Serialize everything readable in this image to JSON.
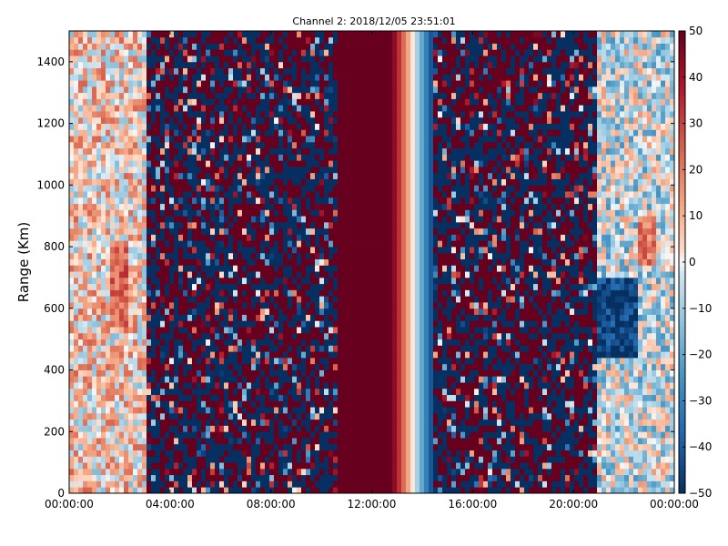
{
  "chart_data": {
    "type": "heatmap",
    "title": "Channel 2: 2018/12/05 23:51:01",
    "xlabel": "",
    "ylabel": "Range (Km)",
    "x_ticks": [
      "00:00:00",
      "04:00:00",
      "08:00:00",
      "12:00:00",
      "16:00:00",
      "20:00:00",
      "00:00:00"
    ],
    "x_range_hours": [
      0,
      24
    ],
    "y_ticks": [
      0,
      200,
      400,
      600,
      800,
      1000,
      1200,
      1400
    ],
    "ylim": [
      0,
      1500
    ],
    "colorbar": {
      "ticks": [
        50,
        40,
        30,
        20,
        10,
        0,
        -10,
        -20,
        -30,
        -40,
        -50
      ],
      "range": [
        -50,
        50
      ],
      "colormap": "RdBu_r",
      "low_color": "#053061",
      "mid_color": "#f7f7f7",
      "high_color": "#67001f"
    },
    "regions": [
      {
        "from_hour": 0.0,
        "to_hour": 3.1,
        "pattern": "low-amplitude mixed",
        "mean_value": 5
      },
      {
        "from_hour": 1.6,
        "to_hour": 2.4,
        "range_km": [
          550,
          800
        ],
        "pattern": "moderate positive patch",
        "mean_value": 25
      },
      {
        "from_hour": 3.1,
        "to_hour": 10.6,
        "pattern": "saturated random noise",
        "mean_value": 0
      },
      {
        "from_hour": 10.6,
        "to_hour": 12.8,
        "pattern": "uniform saturated positive",
        "mean_value": 50
      },
      {
        "from_hour": 12.8,
        "to_hour": 14.5,
        "pattern": "smooth gradient positive to negative",
        "mean_value": 0
      },
      {
        "from_hour": 14.5,
        "to_hour": 21.0,
        "pattern": "saturated random noise",
        "mean_value": -5
      },
      {
        "from_hour": 21.0,
        "to_hour": 24.0,
        "pattern": "low-amplitude mixed",
        "mean_value": -5
      },
      {
        "from_hour": 21.0,
        "to_hour": 22.5,
        "range_km": [
          450,
          700
        ],
        "pattern": "strong negative patch",
        "mean_value": -45
      },
      {
        "from_hour": 22.5,
        "to_hour": 23.3,
        "range_km": [
          750,
          900
        ],
        "pattern": "moderate positive patch",
        "mean_value": 20
      }
    ]
  }
}
